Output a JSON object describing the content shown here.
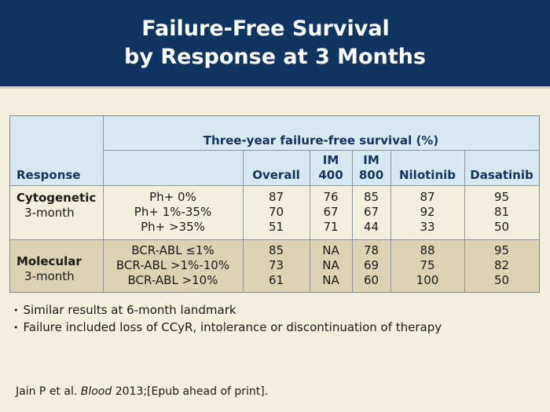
{
  "title": {
    "line1": "Failure-Free Survival",
    "line2": "by Response at 3 Months"
  },
  "table": {
    "group_header": "Three-year failure-free survival (%)",
    "col_response": "Response",
    "col_overall": "Overall",
    "col_im400_a": "IM",
    "col_im400_b": "400",
    "col_im800_a": "IM",
    "col_im800_b": "800",
    "col_nilotinib": "Nilotinib",
    "col_dasatinib": "Dasatinib",
    "groups": [
      {
        "name": "Cytogenetic",
        "sub": "3-month",
        "rows": [
          {
            "criterion": "Ph+ 0%",
            "overall": "87",
            "im400": "76",
            "im800": "85",
            "nilotinib": "87",
            "dasatinib": "95"
          },
          {
            "criterion": "Ph+ 1%-35%",
            "overall": "70",
            "im400": "67",
            "im800": "67",
            "nilotinib": "92",
            "dasatinib": "81"
          },
          {
            "criterion": "Ph+ >35%",
            "overall": "51",
            "im400": "71",
            "im800": "44",
            "nilotinib": "33",
            "dasatinib": "50"
          }
        ]
      },
      {
        "name": "Molecular",
        "sub": "3-month",
        "rows": [
          {
            "criterion": "BCR-ABL ≤1%",
            "overall": "85",
            "im400": "NA",
            "im800": "78",
            "nilotinib": "88",
            "dasatinib": "95"
          },
          {
            "criterion": "BCR-ABL >1%-10%",
            "overall": "73",
            "im400": "NA",
            "im800": "69",
            "nilotinib": "75",
            "dasatinib": "82"
          },
          {
            "criterion": "BCR-ABL >10%",
            "overall": "61",
            "im400": "NA",
            "im800": "60",
            "nilotinib": "100",
            "dasatinib": "50"
          }
        ]
      }
    ]
  },
  "bullets": [
    "Similar results at 6-month landmark",
    "Failure included loss of CCyR, intolerance or discontinuation of therapy"
  ],
  "citation": {
    "prefix": "Jain P et al. ",
    "journal": "Blood",
    "suffix": " 2013;[Epub ahead of print]."
  },
  "colors": {
    "header_bg": "#0f3461",
    "table_header_bg": "#d6e8f0",
    "group2_bg": "#dcd3b4",
    "page_bg": "#f4efdc"
  }
}
